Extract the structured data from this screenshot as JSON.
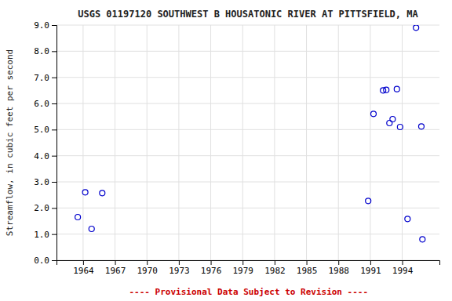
{
  "chart_data": {
    "type": "scatter",
    "title": "USGS 01197120 SOUTHWEST B HOUSATONIC RIVER AT PITTSFIELD, MA",
    "y_label": "Streamflow, in cubic feet per second",
    "annotations": [
      "---- Provisional Data Subject to Revision ----"
    ],
    "x": [
      1963.5,
      1964.2,
      1964.8,
      1965.8,
      1990.8,
      1991.3,
      1992.2,
      1992.5,
      1992.8,
      1993.1,
      1993.5,
      1993.8,
      1994.5,
      1995.3,
      1995.8,
      1995.9
    ],
    "values": [
      1.65,
      2.6,
      1.2,
      2.57,
      2.27,
      5.6,
      6.5,
      6.52,
      5.25,
      5.4,
      6.55,
      5.1,
      1.58,
      8.9,
      5.12,
      0.8
    ],
    "color": "#0000CC",
    "marker": "circle-open",
    "xlim": [
      1961.5,
      1997.5
    ],
    "ylim": [
      0.0,
      9.0
    ],
    "xticks": [
      1964,
      1967,
      1970,
      1973,
      1976,
      1979,
      1982,
      1985,
      1988,
      1991,
      1994
    ],
    "yticks": [
      {
        "value": 0.0,
        "label": "0.0"
      },
      {
        "value": 1.0,
        "label": "1.0"
      },
      {
        "value": 2.0,
        "label": "2.0"
      },
      {
        "value": 3.0,
        "label": "3.0"
      },
      {
        "value": 4.0,
        "label": "4.0"
      },
      {
        "value": 5.0,
        "label": "5.0"
      },
      {
        "value": 6.0,
        "label": "6.0"
      },
      {
        "value": 7.0,
        "label": "7.0"
      },
      {
        "value": 8.0,
        "label": "8.0"
      },
      {
        "value": 9.0,
        "label": "9.0"
      }
    ],
    "grid": true
  }
}
